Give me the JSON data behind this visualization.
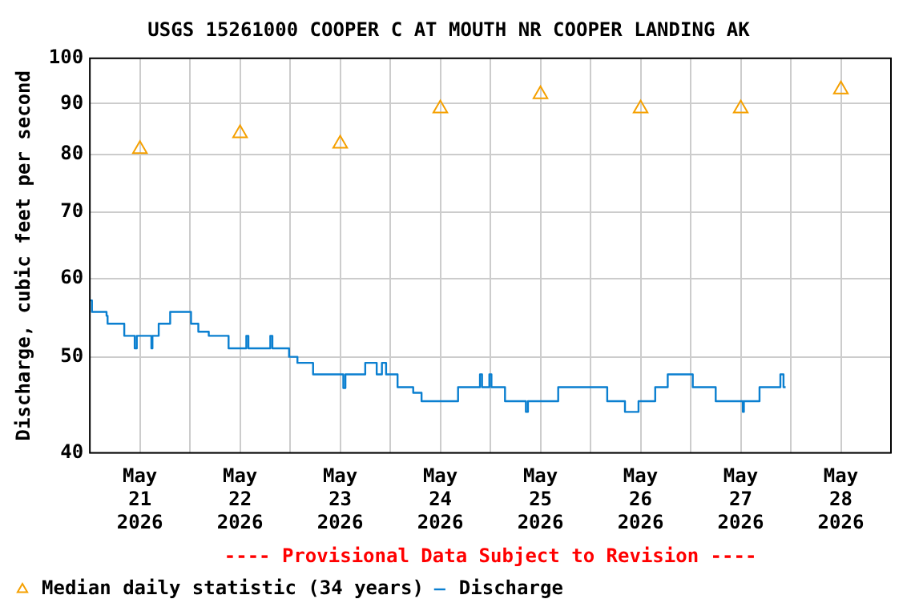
{
  "chart_data": {
    "type": "step",
    "title": "USGS 15261000 COOPER C AT MOUTH NR COOPER LANDING AK",
    "ylabel": "Discharge, cubic feet per second",
    "annotations": [
      "---- Provisional Data Subject to Revision ----"
    ],
    "log": "y",
    "grid": true,
    "legend": "bottom",
    "xlim": [
      "2026-05-21T00:00",
      "2026-05-29T00:00"
    ],
    "xticks": [
      {
        "value": "2026-05-21T12:00",
        "label": "May 21 2026"
      },
      {
        "value": "2026-05-22T00:00",
        "label": null
      },
      {
        "value": "2026-05-22T12:00",
        "label": "May 22 2026"
      },
      {
        "value": "2026-05-23T00:00",
        "label": null
      },
      {
        "value": "2026-05-23T12:00",
        "label": "May 23 2026"
      },
      {
        "value": "2026-05-24T00:00",
        "label": null
      },
      {
        "value": "2026-05-24T12:00",
        "label": "May 24 2026"
      },
      {
        "value": "2026-05-25T00:00",
        "label": null
      },
      {
        "value": "2026-05-25T12:00",
        "label": "May 25 2026"
      },
      {
        "value": "2026-05-26T00:00",
        "label": null
      },
      {
        "value": "2026-05-26T12:00",
        "label": "May 26 2026"
      },
      {
        "value": "2026-05-27T00:00",
        "label": null
      },
      {
        "value": "2026-05-27T12:00",
        "label": "May 27 2026"
      },
      {
        "value": "2026-05-28T00:00",
        "label": null
      },
      {
        "value": "2026-05-28T12:00",
        "label": "May 28 2026"
      }
    ],
    "ylim": [
      40,
      100
    ],
    "yticks": [
      40,
      50,
      60,
      70,
      80,
      90,
      100
    ],
    "series": [
      {
        "name": "Median daily statistic (34 years)",
        "type": "scatter",
        "marker": "triangle",
        "color": "#f5a000",
        "x": [
          "2026-05-21T12:00",
          "2026-05-22T12:00",
          "2026-05-23T12:00",
          "2026-05-24T12:00",
          "2026-05-25T12:00",
          "2026-05-26T12:00",
          "2026-05-27T12:00",
          "2026-05-28T12:00"
        ],
        "values": [
          81,
          84,
          82,
          89,
          92,
          89,
          89,
          93
        ]
      },
      {
        "name": "Discharge",
        "color": "#0a7fd0",
        "x": [
          "2026-05-21T00:00",
          "2026-05-21T00:30",
          "2026-05-21T04:00",
          "2026-05-21T04:15",
          "2026-05-21T08:15",
          "2026-05-21T10:45",
          "2026-05-21T11:15",
          "2026-05-21T14:45",
          "2026-05-21T15:00",
          "2026-05-21T16:30",
          "2026-05-21T19:15",
          "2026-05-22T00:15",
          "2026-05-22T02:00",
          "2026-05-22T04:30",
          "2026-05-22T09:15",
          "2026-05-22T13:30",
          "2026-05-22T14:00",
          "2026-05-22T19:15",
          "2026-05-22T19:45",
          "2026-05-22T23:45",
          "2026-05-23T01:45",
          "2026-05-23T05:30",
          "2026-05-23T12:45",
          "2026-05-23T13:15",
          "2026-05-23T18:00",
          "2026-05-23T20:45",
          "2026-05-23T22:00",
          "2026-05-23T23:00",
          "2026-05-24T01:45",
          "2026-05-24T05:30",
          "2026-05-24T07:30",
          "2026-05-24T16:15",
          "2026-05-24T21:30",
          "2026-05-24T22:00",
          "2026-05-24T23:45",
          "2026-05-25T00:15",
          "2026-05-25T03:30",
          "2026-05-25T08:30",
          "2026-05-25T09:00",
          "2026-05-25T16:15",
          "2026-05-26T04:00",
          "2026-05-26T08:15",
          "2026-05-26T11:30",
          "2026-05-26T15:30",
          "2026-05-26T18:30",
          "2026-05-27T00:30",
          "2026-05-27T06:00",
          "2026-05-27T12:30",
          "2026-05-27T12:45",
          "2026-05-27T16:30",
          "2026-05-27T21:30",
          "2026-05-27T22:15",
          "2026-05-27T22:45"
        ],
        "values": [
          57,
          55.5,
          55,
          54,
          52.5,
          51,
          52.5,
          51,
          52.5,
          54,
          55.5,
          54,
          53,
          52.5,
          51,
          52.5,
          51,
          52.5,
          51,
          50,
          49.3,
          48,
          46.5,
          48,
          49.3,
          48,
          49.3,
          48,
          46.6,
          46,
          45.1,
          46.6,
          48,
          46.6,
          48,
          46.6,
          45.1,
          44,
          45.1,
          46.6,
          45.1,
          44,
          45.1,
          46.6,
          48,
          46.6,
          45.1,
          44,
          45.1,
          46.6,
          48,
          46.6,
          46.6
        ]
      }
    ]
  }
}
